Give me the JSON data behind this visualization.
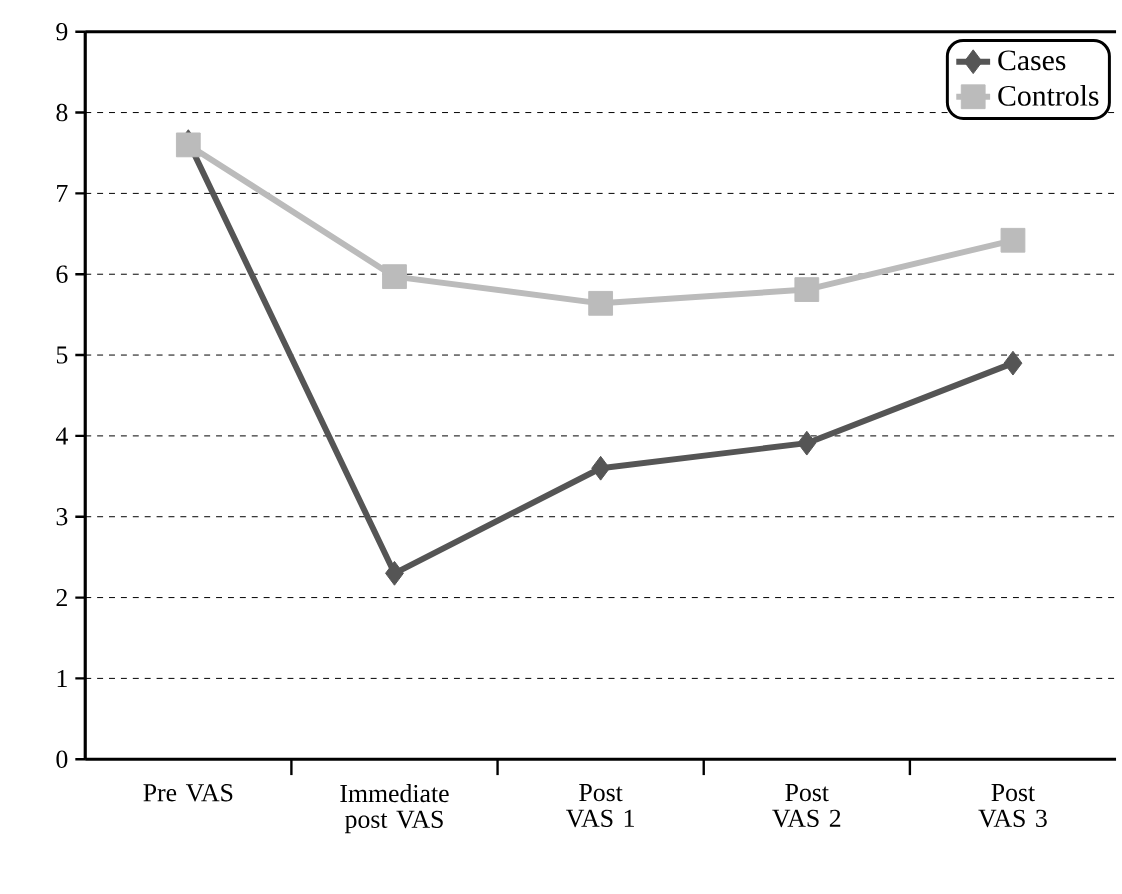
{
  "chart_data": {
    "type": "line",
    "categories": [
      "Pre VAS",
      "Immediate post VAS",
      "Post VAS 1",
      "Post VAS 2",
      "Post VAS 3"
    ],
    "series": [
      {
        "name": "Cases",
        "color": "#555555",
        "marker": "diamond",
        "values": [
          7.64,
          2.3,
          3.6,
          3.91,
          4.9
        ]
      },
      {
        "name": "Controls",
        "color": "#bbbbbb",
        "marker": "square",
        "values": [
          7.6,
          5.97,
          5.64,
          5.81,
          6.42
        ]
      }
    ],
    "ylim": [
      0,
      9
    ],
    "yticks": [
      0,
      1,
      2,
      3,
      4,
      5,
      6,
      7,
      8,
      9
    ],
    "grid": "y",
    "legend": "top right",
    "line_style": "solid"
  }
}
